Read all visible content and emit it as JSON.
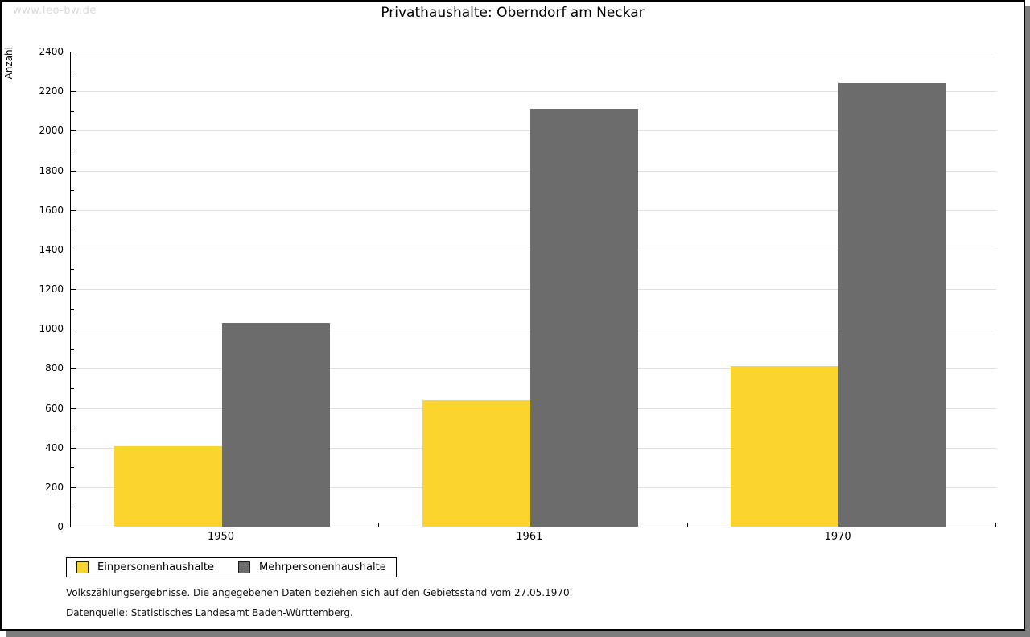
{
  "watermark": "www.leo-bw.de",
  "chart_data": {
    "type": "bar",
    "title": "Privathaushalte: Oberndorf am Neckar",
    "xlabel": "",
    "ylabel": "Anzahl",
    "categories": [
      "1950",
      "1961",
      "1970"
    ],
    "series": [
      {
        "name": "Einpersonenhaushalte",
        "color": "#FCD42E",
        "values": [
          405,
          640,
          810
        ]
      },
      {
        "name": "Mehrpersonenhaushalte",
        "color": "#6C6C6C",
        "values": [
          1030,
          2110,
          2240
        ]
      }
    ],
    "ylim": [
      0,
      2400
    ],
    "ytick_step": 200,
    "ytick_minor_step": 100,
    "grid": true,
    "gridline_color": "#e0e0e0",
    "legend_position": "bottom-left"
  },
  "footnotes": {
    "line1": "Volkszählungsergebnisse. Die angegebenen Daten beziehen sich auf den Gebietsstand vom 27.05.1970.",
    "line2": "Datenquelle: Statistisches Landesamt Baden-Württemberg."
  }
}
